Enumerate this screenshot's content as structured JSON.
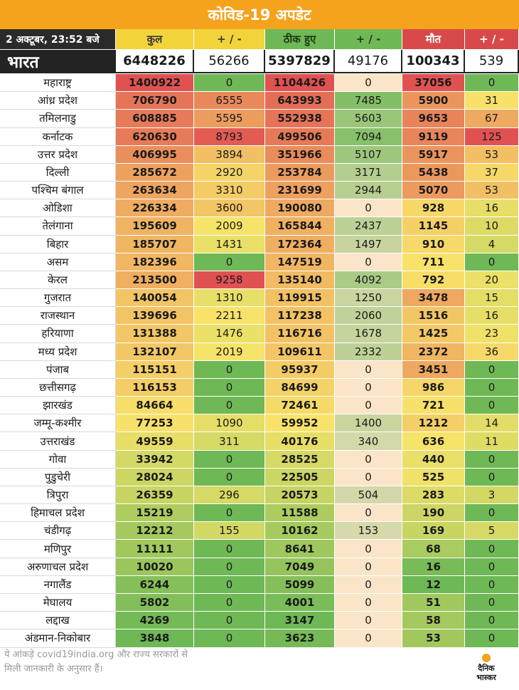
{
  "header": {
    "title": "कोविड-19 अपडेट",
    "date_label": "2 अक्टूबर, 23:52 बजे",
    "col_total": "कुल",
    "col_total_change": "+ / -",
    "col_recovered": "ठीक हुए",
    "col_recovered_change": "+ / -",
    "col_deaths": "मौत",
    "col_deaths_change": "+ / -"
  },
  "colors": {
    "banner": "#f5a21d",
    "low": "#6fb856",
    "mid": "#f8e46a",
    "high": "#e05252",
    "cream": "#fae5c8"
  },
  "footer": {
    "note_line1": "ये आंकड़े covid19india.org और राज्य सरकारों से",
    "note_line2": "मिली जानकारी के अनुसार हैं।",
    "logo_line1": "दैनिक",
    "logo_line2": "भास्कर"
  },
  "chart_data": {
    "type": "table",
    "title": "कोविड-19 अपडेट",
    "columns": [
      "कुल",
      "+ / -",
      "ठीक हुए",
      "+ / -",
      "मौत",
      "+ / -"
    ],
    "national": {
      "name": "भारत",
      "total": "6448226",
      "total_change": "56266",
      "recovered": "5397829",
      "recovered_change": "49176",
      "deaths": "100343",
      "deaths_change": "539"
    },
    "rows": [
      {
        "name": "महाराष्ट्र",
        "total": "1400922",
        "total_change": "0",
        "recovered": "1104426",
        "recovered_change": "0",
        "deaths": "37056",
        "deaths_change": "0"
      },
      {
        "name": "आंध्र प्रदेश",
        "total": "706790",
        "total_change": "6555",
        "recovered": "643993",
        "recovered_change": "7485",
        "deaths": "5900",
        "deaths_change": "31"
      },
      {
        "name": "तमिलनाडु",
        "total": "608885",
        "total_change": "5595",
        "recovered": "552938",
        "recovered_change": "5603",
        "deaths": "9653",
        "deaths_change": "67"
      },
      {
        "name": "कर्नाटक",
        "total": "620630",
        "total_change": "8793",
        "recovered": "499506",
        "recovered_change": "7094",
        "deaths": "9119",
        "deaths_change": "125"
      },
      {
        "name": "उत्तर प्रदेश",
        "total": "406995",
        "total_change": "3894",
        "recovered": "351966",
        "recovered_change": "5107",
        "deaths": "5917",
        "deaths_change": "53"
      },
      {
        "name": "दिल्ली",
        "total": "285672",
        "total_change": "2920",
        "recovered": "253784",
        "recovered_change": "3171",
        "deaths": "5438",
        "deaths_change": "37"
      },
      {
        "name": "पश्चिम बंगाल",
        "total": "263634",
        "total_change": "3310",
        "recovered": "231699",
        "recovered_change": "2944",
        "deaths": "5070",
        "deaths_change": "53"
      },
      {
        "name": "ओडिशा",
        "total": "226334",
        "total_change": "3600",
        "recovered": "190080",
        "recovered_change": "0",
        "deaths": "928",
        "deaths_change": "16"
      },
      {
        "name": "तेलंगाना",
        "total": "195609",
        "total_change": "2009",
        "recovered": "165844",
        "recovered_change": "2437",
        "deaths": "1145",
        "deaths_change": "10"
      },
      {
        "name": "बिहार",
        "total": "185707",
        "total_change": "1431",
        "recovered": "172364",
        "recovered_change": "1497",
        "deaths": "910",
        "deaths_change": "4"
      },
      {
        "name": "असम",
        "total": "182396",
        "total_change": "0",
        "recovered": "147519",
        "recovered_change": "0",
        "deaths": "711",
        "deaths_change": "0"
      },
      {
        "name": "केरल",
        "total": "213500",
        "total_change": "9258",
        "recovered": "135140",
        "recovered_change": "4092",
        "deaths": "792",
        "deaths_change": "20"
      },
      {
        "name": "गुजरात",
        "total": "140054",
        "total_change": "1310",
        "recovered": "119915",
        "recovered_change": "1250",
        "deaths": "3478",
        "deaths_change": "15"
      },
      {
        "name": "राजस्थान",
        "total": "139696",
        "total_change": "2211",
        "recovered": "117238",
        "recovered_change": "2060",
        "deaths": "1516",
        "deaths_change": "16"
      },
      {
        "name": "हरियाणा",
        "total": "131388",
        "total_change": "1476",
        "recovered": "116716",
        "recovered_change": "1678",
        "deaths": "1425",
        "deaths_change": "23"
      },
      {
        "name": "मध्य प्रदेश",
        "total": "132107",
        "total_change": "2019",
        "recovered": "109611",
        "recovered_change": "2332",
        "deaths": "2372",
        "deaths_change": "36"
      },
      {
        "name": "पंजाब",
        "total": "115151",
        "total_change": "0",
        "recovered": "95937",
        "recovered_change": "0",
        "deaths": "3451",
        "deaths_change": "0"
      },
      {
        "name": "छत्तीसगढ़",
        "total": "116153",
        "total_change": "0",
        "recovered": "84699",
        "recovered_change": "0",
        "deaths": "986",
        "deaths_change": "0"
      },
      {
        "name": "झारखंड",
        "total": "84664",
        "total_change": "0",
        "recovered": "72461",
        "recovered_change": "0",
        "deaths": "721",
        "deaths_change": "0"
      },
      {
        "name": "जम्मू-कश्मीर",
        "total": "77253",
        "total_change": "1090",
        "recovered": "59952",
        "recovered_change": "1400",
        "deaths": "1212",
        "deaths_change": "14"
      },
      {
        "name": "उत्तराखंड",
        "total": "49559",
        "total_change": "311",
        "recovered": "40176",
        "recovered_change": "340",
        "deaths": "636",
        "deaths_change": "11"
      },
      {
        "name": "गोवा",
        "total": "33942",
        "total_change": "0",
        "recovered": "28525",
        "recovered_change": "0",
        "deaths": "440",
        "deaths_change": "0"
      },
      {
        "name": "पुडुचेरी",
        "total": "28024",
        "total_change": "0",
        "recovered": "22505",
        "recovered_change": "0",
        "deaths": "525",
        "deaths_change": "0"
      },
      {
        "name": "त्रिपुरा",
        "total": "26359",
        "total_change": "296",
        "recovered": "20573",
        "recovered_change": "504",
        "deaths": "283",
        "deaths_change": "3"
      },
      {
        "name": "हिमाचल प्रदेश",
        "total": "15219",
        "total_change": "0",
        "recovered": "11588",
        "recovered_change": "0",
        "deaths": "190",
        "deaths_change": "0"
      },
      {
        "name": "चंडीगढ़",
        "total": "12212",
        "total_change": "155",
        "recovered": "10162",
        "recovered_change": "153",
        "deaths": "169",
        "deaths_change": "5"
      },
      {
        "name": "मणिपुर",
        "total": "11111",
        "total_change": "0",
        "recovered": "8641",
        "recovered_change": "0",
        "deaths": "68",
        "deaths_change": "0"
      },
      {
        "name": "अरुणाचल प्रदेश",
        "total": "10020",
        "total_change": "0",
        "recovered": "7049",
        "recovered_change": "0",
        "deaths": "16",
        "deaths_change": "0"
      },
      {
        "name": "नगालैंड",
        "total": "6244",
        "total_change": "0",
        "recovered": "5099",
        "recovered_change": "0",
        "deaths": "12",
        "deaths_change": "0"
      },
      {
        "name": "मेघालय",
        "total": "5802",
        "total_change": "0",
        "recovered": "4001",
        "recovered_change": "0",
        "deaths": "51",
        "deaths_change": "0"
      },
      {
        "name": "लद्दाख",
        "total": "4269",
        "total_change": "0",
        "recovered": "3147",
        "recovered_change": "0",
        "deaths": "58",
        "deaths_change": "0"
      },
      {
        "name": "अंडमान-निकोबार",
        "total": "3848",
        "total_change": "0",
        "recovered": "3623",
        "recovered_change": "0",
        "deaths": "53",
        "deaths_change": "0"
      }
    ]
  }
}
